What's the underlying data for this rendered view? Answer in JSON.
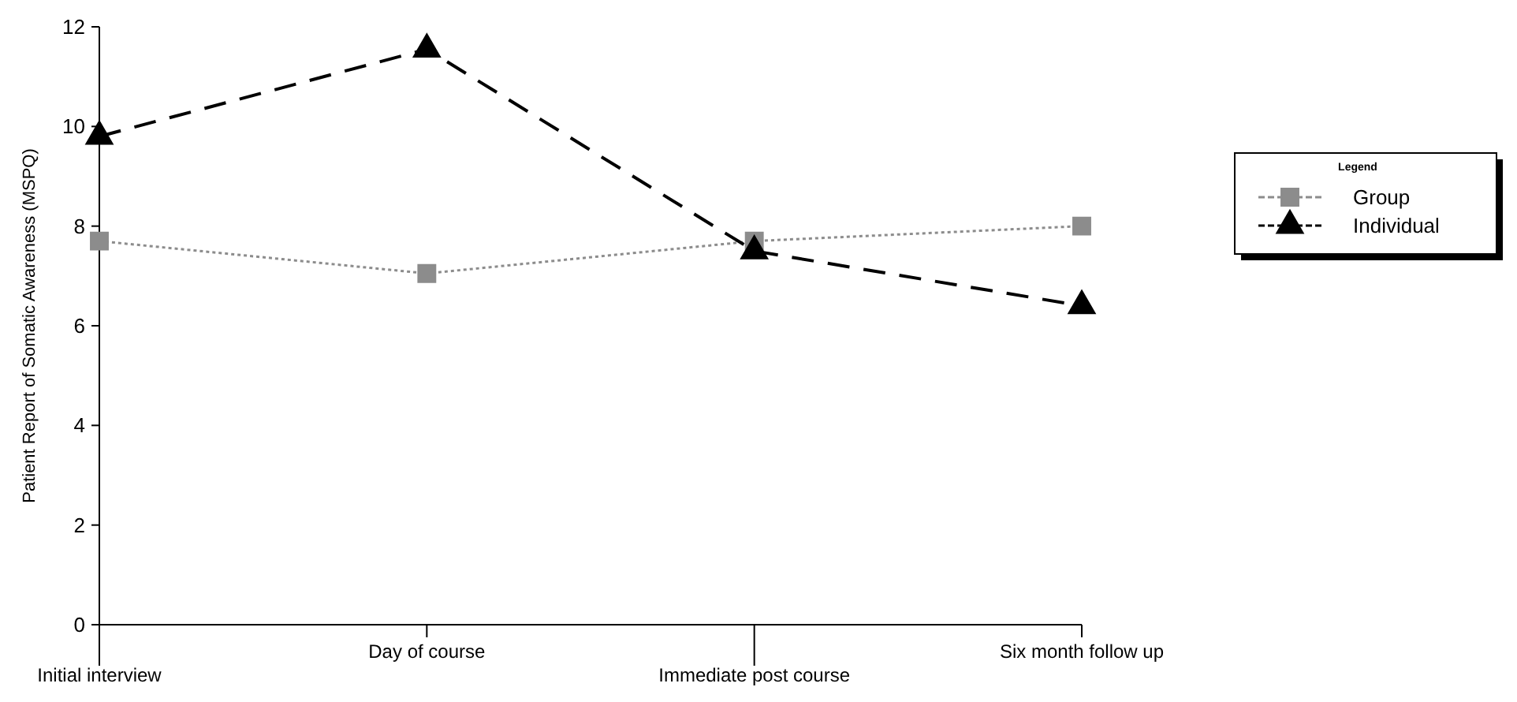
{
  "chart_data": {
    "type": "line",
    "ylabel": "Patient Report of Somatic Awareness (MSPQ)",
    "categories": [
      "Initial interview",
      "Day of course",
      "Immediate post course",
      "Six month follow up"
    ],
    "series": [
      {
        "name": "Group",
        "color": "#8c8c8c",
        "values": [
          7.7,
          7.05,
          7.7,
          8.0
        ],
        "marker": "square",
        "line_style": "dotted"
      },
      {
        "name": "Individual",
        "color": "#000000",
        "values": [
          9.8,
          11.55,
          7.5,
          6.4
        ],
        "marker": "triangle",
        "line_style": "dashed"
      }
    ],
    "ylim": [
      0,
      12
    ],
    "yticks": [
      0,
      2,
      4,
      6,
      8,
      10,
      12
    ],
    "grid": false,
    "legend": "right",
    "legend_title": "Legend"
  }
}
